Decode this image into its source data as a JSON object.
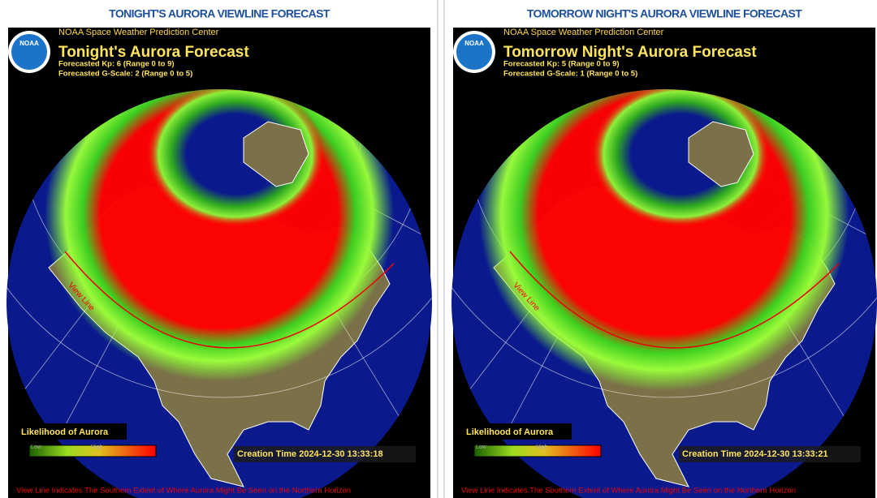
{
  "panels": [
    {
      "heading": "TONIGHT'S AURORA VIEWLINE FORECAST",
      "logo": "NOAA",
      "agency": "NOAA Space Weather Prediction Center",
      "title": "Tonight's Aurora Forecast",
      "kp": "Forecasted Kp: 6 (Range 0 to 9)",
      "gscale": "Forecasted G-Scale: 2 (Range 0 to 5)",
      "view_line": "View Line",
      "legend_title": "Likelihood of Aurora",
      "legend_low": "Low",
      "legend_high": "High",
      "creation_time": "Creation Time 2024-12-30 13:33:18",
      "footer": "View Line Indicates The Southern Extent of Where Aurora Might Be Seen on the Northern Horizon"
    },
    {
      "heading": "TOMORROW NIGHT'S AURORA VIEWLINE FORECAST",
      "logo": "NOAA",
      "agency": "NOAA Space Weather Prediction Center",
      "title": "Tomorrow Night's Aurora Forecast",
      "kp": "Forecasted Kp: 5 (Range 0 to 9)",
      "gscale": "Forecasted G-Scale: 1 (Range 0 to 5)",
      "view_line": "View Line",
      "legend_title": "Likelihood of Aurora",
      "legend_low": "Low",
      "legend_high": "High",
      "creation_time": "Creation Time 2024-12-30 13:33:21",
      "footer": "View Line Indicates The Southern Extent of Where Aurora Might Be Seen on the Northern Horizon"
    }
  ]
}
